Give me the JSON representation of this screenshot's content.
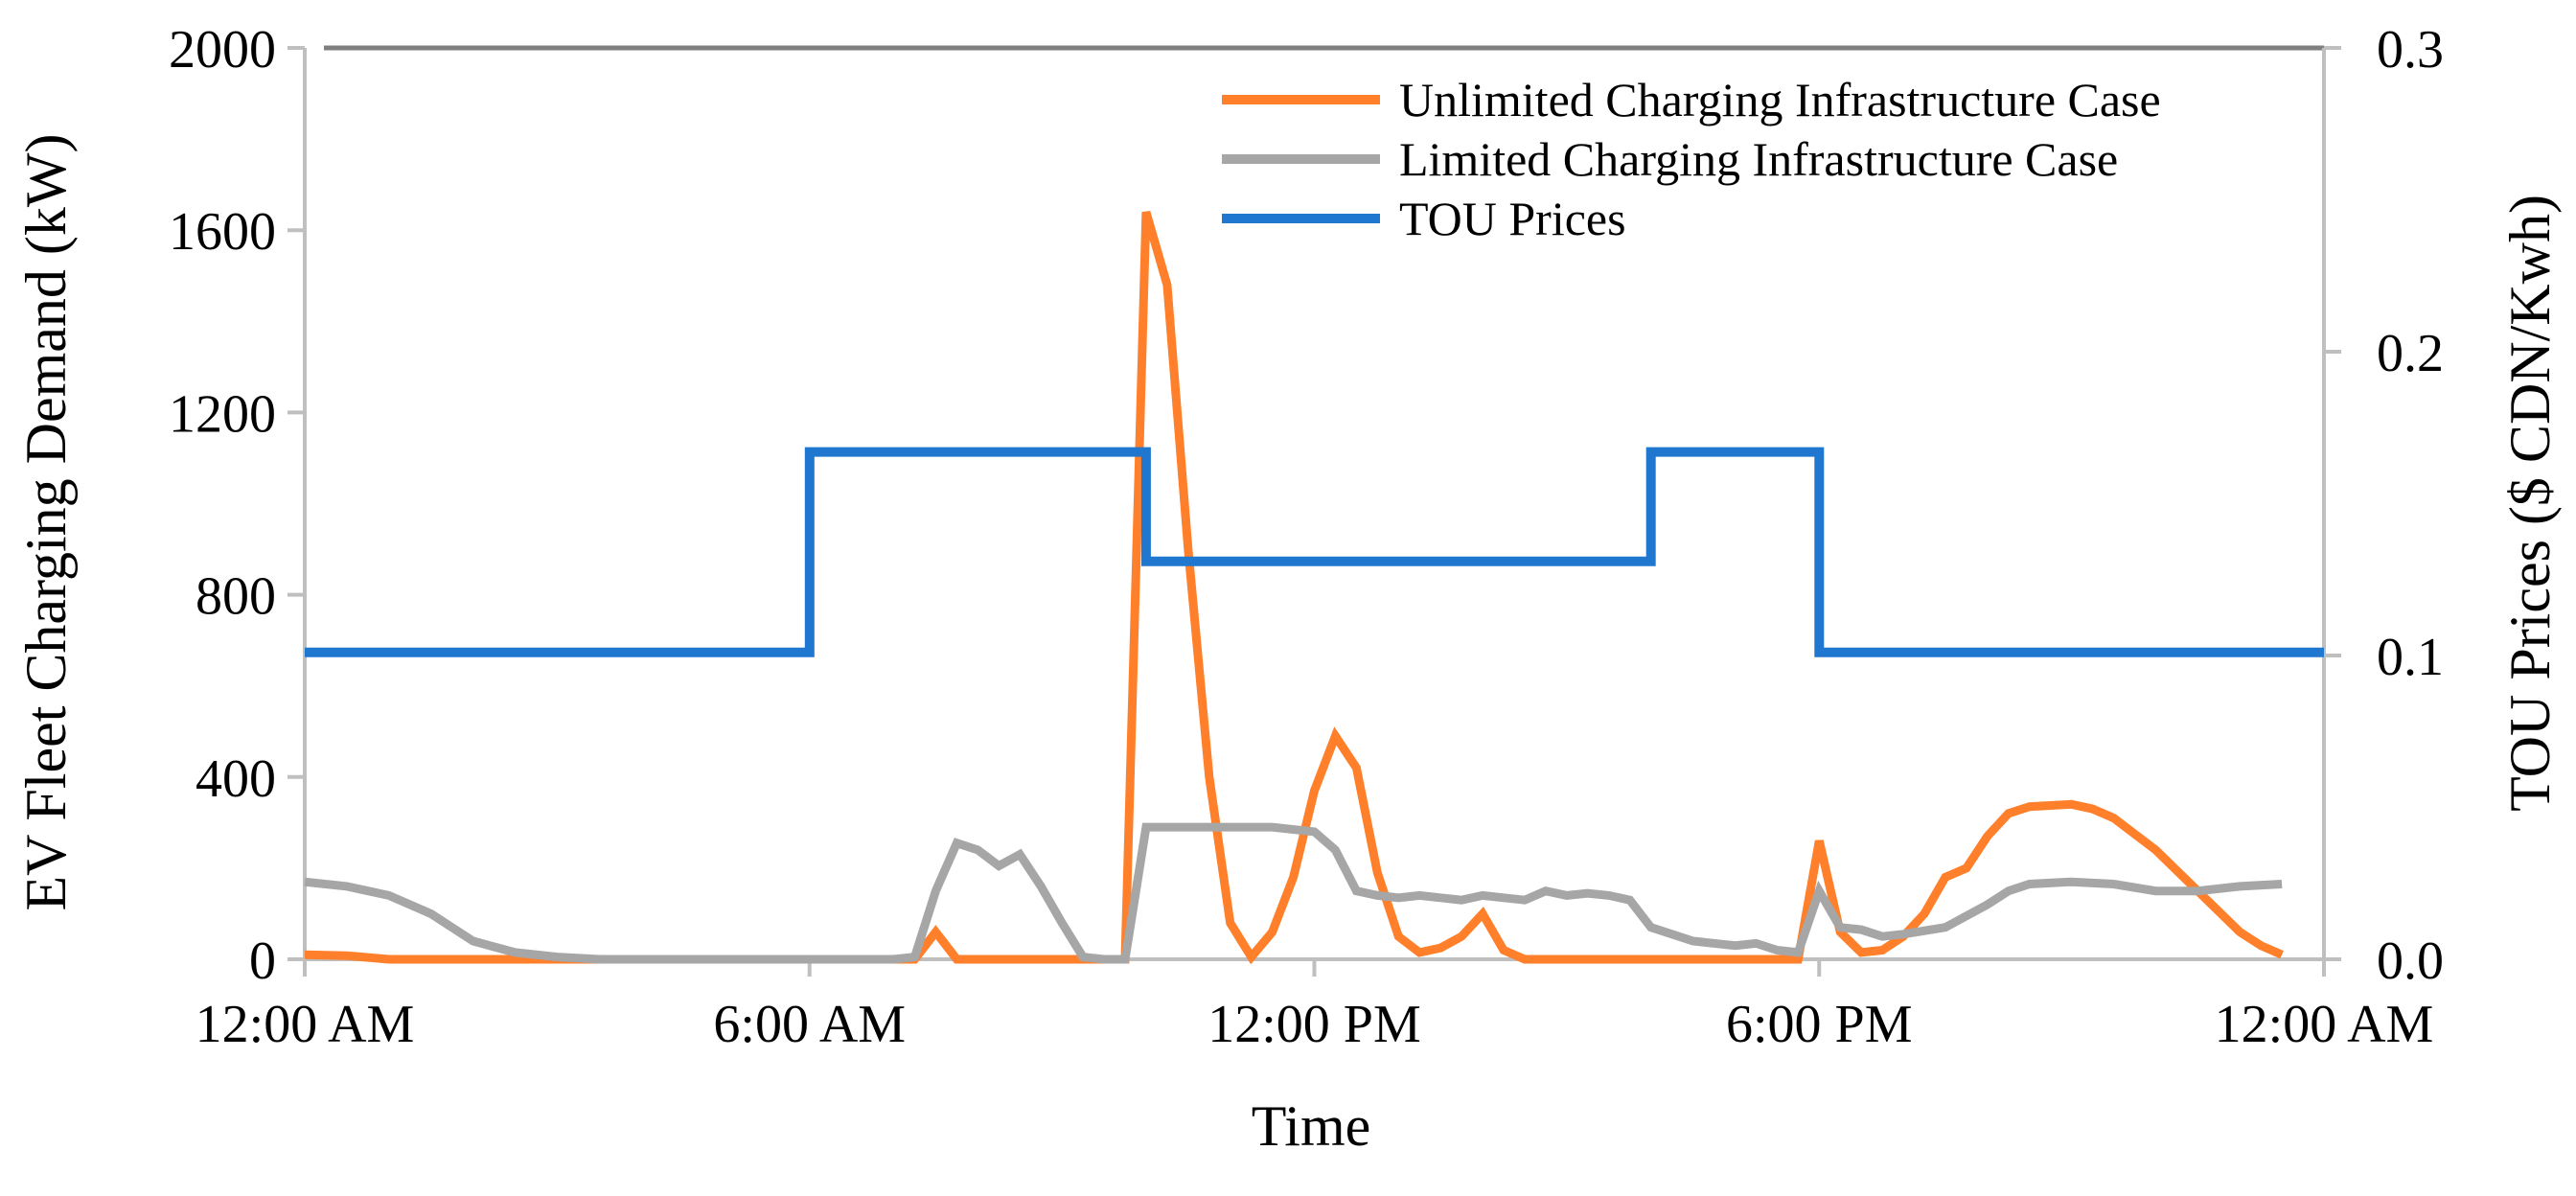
{
  "chart_data": {
    "type": "line",
    "title": "",
    "xlabel": "Time",
    "ylabel": "EV Fleet Charging Demand (kW)",
    "y2label": "TOU Prices ($ CDN/Kwh)",
    "xlim": [
      0,
      24
    ],
    "ylim": [
      0,
      2000
    ],
    "y2lim": [
      0,
      0.3
    ],
    "x_ticks": [
      {
        "hour": 0,
        "label": "12:00 AM"
      },
      {
        "hour": 6,
        "label": "6:00 AM"
      },
      {
        "hour": 12,
        "label": "12:00 PM"
      },
      {
        "hour": 18,
        "label": "6:00 PM"
      },
      {
        "hour": 24,
        "label": "12:00 AM"
      }
    ],
    "y_ticks": [
      {
        "value": 0,
        "label": "0"
      },
      {
        "value": 400,
        "label": "400"
      },
      {
        "value": 800,
        "label": "800"
      },
      {
        "value": 1200,
        "label": "1200"
      },
      {
        "value": 1600,
        "label": "1600"
      },
      {
        "value": 2000,
        "label": "2000"
      }
    ],
    "y2_ticks": [
      {
        "value": 0,
        "label": "0.0"
      },
      {
        "value": 0.1,
        "label": "0.1"
      },
      {
        "value": 0.2,
        "label": "0.2"
      },
      {
        "value": 0.3,
        "label": "0.3"
      }
    ],
    "legend_position": "top-right",
    "series": [
      {
        "name": "Unlimited Charging Infrastructure Case",
        "color": "#FF7F2A",
        "axis": "left",
        "points": [
          [
            0,
            10
          ],
          [
            0.5,
            8
          ],
          [
            1,
            0
          ],
          [
            2,
            0
          ],
          [
            3,
            0
          ],
          [
            4,
            0
          ],
          [
            5,
            0
          ],
          [
            6,
            0
          ],
          [
            7,
            0
          ],
          [
            7.25,
            0
          ],
          [
            7.5,
            60
          ],
          [
            7.75,
            0
          ],
          [
            8,
            0
          ],
          [
            8.5,
            0
          ],
          [
            9,
            0
          ],
          [
            9.5,
            0
          ],
          [
            9.75,
            0
          ],
          [
            10,
            1640
          ],
          [
            10.25,
            1480
          ],
          [
            10.5,
            900
          ],
          [
            10.75,
            400
          ],
          [
            11,
            80
          ],
          [
            11.25,
            5
          ],
          [
            11.5,
            60
          ],
          [
            11.75,
            180
          ],
          [
            12,
            370
          ],
          [
            12.25,
            490
          ],
          [
            12.5,
            420
          ],
          [
            12.75,
            190
          ],
          [
            13,
            50
          ],
          [
            13.25,
            15
          ],
          [
            13.5,
            25
          ],
          [
            13.75,
            50
          ],
          [
            14,
            100
          ],
          [
            14.25,
            20
          ],
          [
            14.5,
            0
          ],
          [
            15,
            0
          ],
          [
            15.5,
            0
          ],
          [
            16,
            0
          ],
          [
            16.5,
            0
          ],
          [
            17,
            0
          ],
          [
            17.5,
            0
          ],
          [
            17.75,
            0
          ],
          [
            18,
            260
          ],
          [
            18.25,
            60
          ],
          [
            18.5,
            15
          ],
          [
            18.75,
            20
          ],
          [
            19,
            50
          ],
          [
            19.25,
            100
          ],
          [
            19.5,
            180
          ],
          [
            19.75,
            200
          ],
          [
            20,
            270
          ],
          [
            20.25,
            320
          ],
          [
            20.5,
            335
          ],
          [
            21,
            340
          ],
          [
            21.25,
            330
          ],
          [
            21.5,
            310
          ],
          [
            22,
            240
          ],
          [
            22.5,
            150
          ],
          [
            23,
            60
          ],
          [
            23.25,
            30
          ],
          [
            23.5,
            10
          ]
        ]
      },
      {
        "name": "Limited Charging Infrastructure Case",
        "color": "#A6A6A6",
        "axis": "left",
        "points": [
          [
            0,
            170
          ],
          [
            0.5,
            160
          ],
          [
            1,
            140
          ],
          [
            1.5,
            100
          ],
          [
            2,
            40
          ],
          [
            2.5,
            15
          ],
          [
            3,
            5
          ],
          [
            3.5,
            0
          ],
          [
            4,
            0
          ],
          [
            5,
            0
          ],
          [
            6,
            0
          ],
          [
            7,
            0
          ],
          [
            7.25,
            5
          ],
          [
            7.5,
            150
          ],
          [
            7.75,
            255
          ],
          [
            8,
            240
          ],
          [
            8.25,
            205
          ],
          [
            8.5,
            230
          ],
          [
            8.75,
            160
          ],
          [
            9,
            80
          ],
          [
            9.25,
            5
          ],
          [
            9.5,
            0
          ],
          [
            9.75,
            0
          ],
          [
            10,
            290
          ],
          [
            10.5,
            290
          ],
          [
            11,
            290
          ],
          [
            11.5,
            290
          ],
          [
            12,
            280
          ],
          [
            12.25,
            240
          ],
          [
            12.5,
            150
          ],
          [
            12.75,
            140
          ],
          [
            13,
            135
          ],
          [
            13.25,
            140
          ],
          [
            13.5,
            135
          ],
          [
            13.75,
            130
          ],
          [
            14,
            140
          ],
          [
            14.25,
            135
          ],
          [
            14.5,
            130
          ],
          [
            14.75,
            150
          ],
          [
            15,
            140
          ],
          [
            15.25,
            145
          ],
          [
            15.5,
            140
          ],
          [
            15.75,
            130
          ],
          [
            16,
            70
          ],
          [
            16.5,
            40
          ],
          [
            17,
            30
          ],
          [
            17.25,
            35
          ],
          [
            17.5,
            20
          ],
          [
            17.75,
            15
          ],
          [
            18,
            150
          ],
          [
            18.25,
            70
          ],
          [
            18.5,
            65
          ],
          [
            18.75,
            50
          ],
          [
            19,
            55
          ],
          [
            19.5,
            70
          ],
          [
            20,
            120
          ],
          [
            20.25,
            150
          ],
          [
            20.5,
            165
          ],
          [
            21,
            170
          ],
          [
            21.5,
            165
          ],
          [
            22,
            150
          ],
          [
            22.5,
            150
          ],
          [
            23,
            160
          ],
          [
            23.5,
            165
          ]
        ]
      },
      {
        "name": "TOU Prices",
        "color": "#1F77D0",
        "axis": "right",
        "points": [
          [
            0,
            0.101
          ],
          [
            6,
            0.101
          ],
          [
            6,
            0.167
          ],
          [
            10,
            0.167
          ],
          [
            10,
            0.131
          ],
          [
            16,
            0.131
          ],
          [
            16,
            0.167
          ],
          [
            18,
            0.167
          ],
          [
            18,
            0.101
          ],
          [
            24,
            0.101
          ]
        ]
      }
    ]
  }
}
